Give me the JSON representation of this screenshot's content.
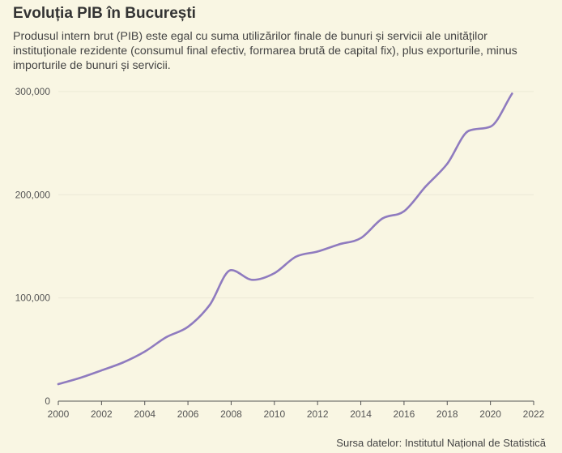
{
  "title": "Evoluția PIB în București",
  "subtitle": "Produsul intern brut (PIB) este egal cu suma utilizărilor finale de bunuri și servicii ale unităților instituționale rezidente (consumul final efectiv, formarea brută de capital fix), plus exporturile, minus importurile de bunuri și servicii.",
  "source": "Sursa datelor: Institutul Național de Statistică",
  "chart_data": {
    "type": "line",
    "title": "Evoluția PIB în București",
    "xlabel": "",
    "ylabel": "",
    "xlim": [
      2000,
      2022
    ],
    "ylim": [
      0,
      300000
    ],
    "x_ticks": [
      2000,
      2002,
      2004,
      2006,
      2008,
      2010,
      2012,
      2014,
      2016,
      2018,
      2020,
      2022
    ],
    "y_ticks": [
      0,
      100000,
      200000,
      300000
    ],
    "x_tick_labels": [
      "2000",
      "2002",
      "2004",
      "2006",
      "2008",
      "2010",
      "2012",
      "2014",
      "2016",
      "2018",
      "2020",
      "2022"
    ],
    "y_tick_labels": [
      "0",
      "100,000",
      "200,000",
      "300,000"
    ],
    "grid": true,
    "colors": {
      "line": "#8f7bbf",
      "grid": "#ece9d6",
      "axis": "#555555",
      "background": "#f9f6e3"
    },
    "series": [
      {
        "x": [
          2000,
          2001,
          2002,
          2003,
          2004,
          2005,
          2006,
          2007,
          2008,
          2009,
          2010,
          2011,
          2012,
          2013,
          2014,
          2015,
          2016,
          2017,
          2018,
          2019,
          2020,
          2021
        ],
        "values": [
          16500,
          22500,
          29800,
          37500,
          48000,
          62000,
          72000,
          93000,
          127000,
          117500,
          124000,
          140000,
          145000,
          152000,
          158000,
          177000,
          184000,
          208000,
          230000,
          262000,
          266000,
          298000
        ]
      }
    ]
  }
}
